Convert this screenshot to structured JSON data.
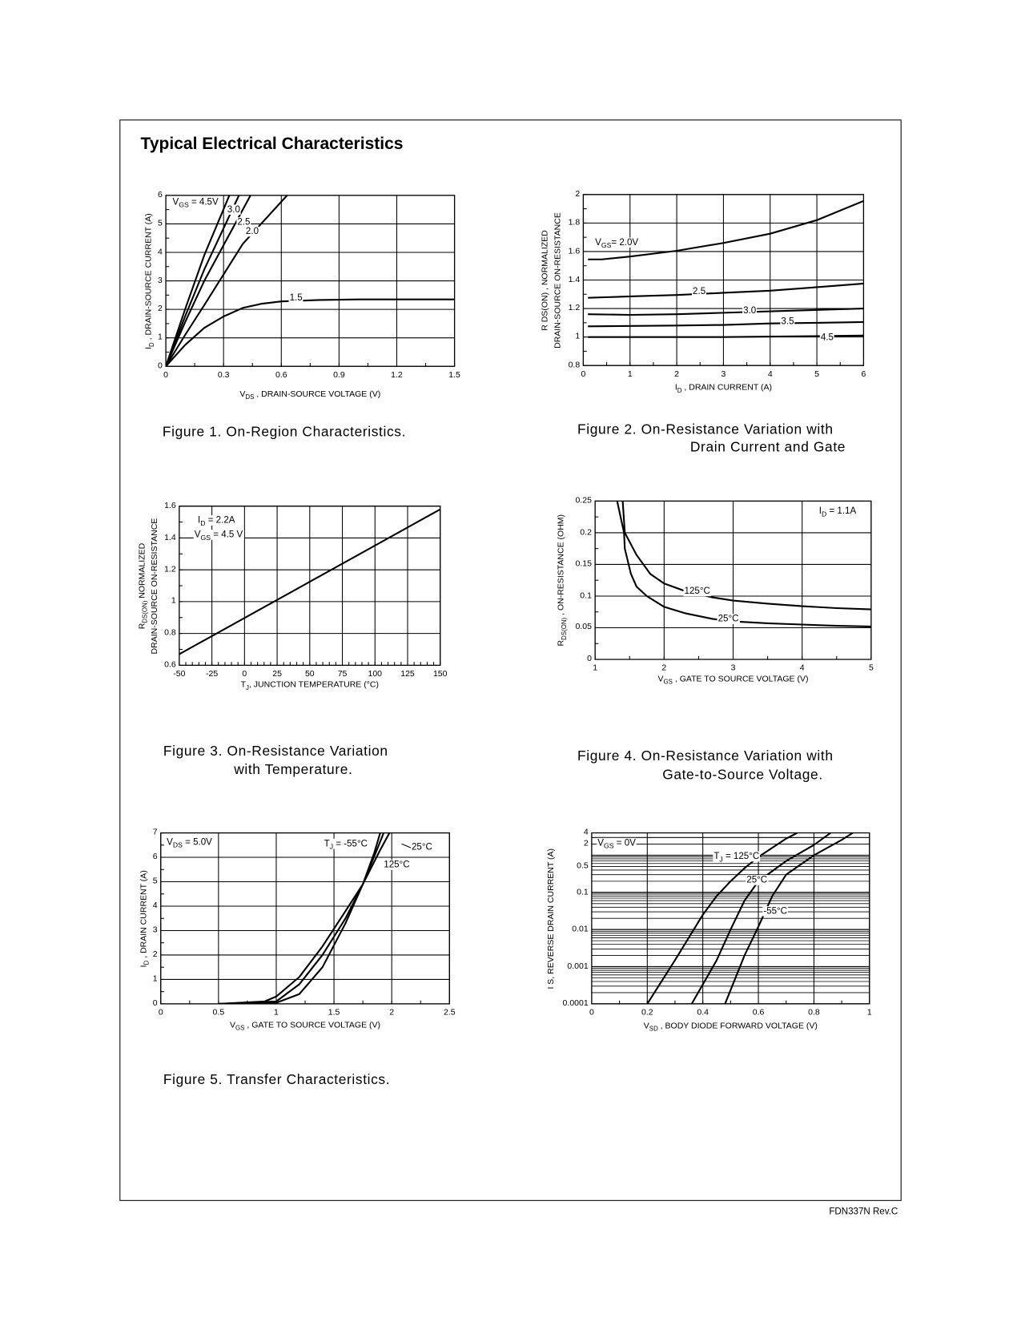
{
  "page": {
    "title": "Typical Electrical Characteristics",
    "footer": "FDN337N Rev.C"
  },
  "captions": [
    [
      "Figure 1. On-Region Characteristics."
    ],
    [
      "Figure 2. On-Resistance Variation with",
      "Drain Current and Gate"
    ],
    [
      "Figure 3. On-Resistance Variation",
      "with Temperature."
    ],
    [
      "Figure 4. On-Resistance Variation with",
      "Gate-to-Source Voltage."
    ],
    [
      "Figure  5. Transfer Characteristics."
    ]
  ],
  "chart_data": [
    {
      "type": "line",
      "title": "Figure 1. On-Region Characteristics.",
      "xlabel": "V_{DS} , DRAIN-SOURCE VOLTAGE (V)",
      "ylabel": [
        "I_{D} , DRAIN-SOURCE CURRENT (A)"
      ],
      "xlim": [
        0,
        1.5
      ],
      "ylim": [
        0,
        6
      ],
      "grid": true,
      "xticks": [
        "0",
        "0.3",
        "0.6",
        "0.9",
        "1.2",
        "1.5"
      ],
      "yticks": [
        "0",
        "1",
        "2",
        "3",
        "4",
        "5",
        "6"
      ],
      "series": [
        {
          "name": "VGS = 4.5V",
          "points": [
            [
              0,
              0
            ],
            [
              0.1,
              2.0
            ],
            [
              0.2,
              3.9
            ],
            [
              0.33,
              6
            ]
          ]
        },
        {
          "name": "3.0",
          "points": [
            [
              0,
              0
            ],
            [
              0.1,
              1.75
            ],
            [
              0.2,
              3.4
            ],
            [
              0.38,
              6
            ]
          ]
        },
        {
          "name": "2.5",
          "points": [
            [
              0,
              0
            ],
            [
              0.1,
              1.55
            ],
            [
              0.2,
              3.0
            ],
            [
              0.44,
              6
            ]
          ]
        },
        {
          "name": "2.0",
          "points": [
            [
              0,
              0
            ],
            [
              0.1,
              1.1
            ],
            [
              0.2,
              2.15
            ],
            [
              0.4,
              4.3
            ],
            [
              0.63,
              6
            ]
          ]
        },
        {
          "name": "1.5",
          "points": [
            [
              0,
              0
            ],
            [
              0.1,
              0.75
            ],
            [
              0.2,
              1.35
            ],
            [
              0.3,
              1.75
            ],
            [
              0.4,
              2.05
            ],
            [
              0.5,
              2.2
            ],
            [
              0.6,
              2.28
            ],
            [
              0.8,
              2.33
            ],
            [
              1.0,
              2.35
            ],
            [
              1.5,
              2.35
            ]
          ]
        }
      ],
      "annotations": [
        "V_{GS} = 4.5V",
        "3.0",
        "2.5",
        "2.0",
        "1.5"
      ]
    },
    {
      "type": "line",
      "title": "Figure 2. On-Resistance Variation with Drain Current and Gate",
      "xlabel": "I_{D} , DRAIN CURRENT (A)",
      "ylabel": [
        "R DS(ON) , NORMALIZED",
        "DRAIN-SOURCE ON-RESISTANCE"
      ],
      "xlim": [
        0,
        6
      ],
      "ylim": [
        0.8,
        2
      ],
      "grid": true,
      "xticks": [
        "0",
        "1",
        "2",
        "3",
        "4",
        "5",
        "6"
      ],
      "yticks": [
        "0.8",
        "1",
        "1.2",
        "1.4",
        "1.6",
        "1.8",
        "2"
      ],
      "series": [
        {
          "name": "VGS = 2.0V",
          "points": [
            [
              0.1,
              1.545
            ],
            [
              0.4,
              1.545
            ],
            [
              1,
              1.565
            ],
            [
              2,
              1.605
            ],
            [
              3,
              1.66
            ],
            [
              4,
              1.725
            ],
            [
              5,
              1.82
            ],
            [
              6,
              1.955
            ]
          ]
        },
        {
          "name": "2.5",
          "points": [
            [
              0.1,
              1.275
            ],
            [
              1,
              1.285
            ],
            [
              2,
              1.295
            ],
            [
              3,
              1.31
            ],
            [
              4,
              1.325
            ],
            [
              5,
              1.35
            ],
            [
              6,
              1.375
            ]
          ]
        },
        {
          "name": "3.0",
          "points": [
            [
              0.1,
              1.16
            ],
            [
              1,
              1.155
            ],
            [
              2,
              1.16
            ],
            [
              3,
              1.17
            ],
            [
              4,
              1.18
            ],
            [
              5,
              1.19
            ],
            [
              6,
              1.2
            ]
          ]
        },
        {
          "name": "3.5",
          "points": [
            [
              0.1,
              1.075
            ],
            [
              2,
              1.08
            ],
            [
              3,
              1.085
            ],
            [
              4,
              1.095
            ],
            [
              5,
              1.1
            ],
            [
              6,
              1.105
            ]
          ]
        },
        {
          "name": "4.5",
          "points": [
            [
              0.1,
              1.0
            ],
            [
              3,
              1.0
            ],
            [
              6,
              1.01
            ]
          ]
        }
      ],
      "annotations": [
        "V_{GS}= 2.0V",
        "2.5",
        "3.0",
        "3.5",
        "4.5"
      ]
    },
    {
      "type": "line",
      "title": "Figure 3. On-Resistance Variation with Temperature.",
      "xlabel": "T_{J}, JUNCTION TEMPERATURE (°C)",
      "ylabel": [
        "R_{DS(ON)}  NORMALIZED",
        "DRAIN-SOURCE ON-RESISTANCE"
      ],
      "xlim": [
        -50,
        150
      ],
      "ylim": [
        0.6,
        1.6
      ],
      "grid": true,
      "xticks": [
        "-50",
        "-25",
        "0",
        "25",
        "50",
        "75",
        "100",
        "125",
        "150"
      ],
      "yticks": [
        "0.6",
        "0.8",
        "1",
        "1.2",
        "1.4",
        "1.6"
      ],
      "series": [
        {
          "name": "ID = 2.2A, VGS = 4.5V",
          "points": [
            [
              -50,
              0.67
            ],
            [
              150,
              1.58
            ]
          ]
        }
      ],
      "annotations": [
        "I_{D} = 2.2A",
        "V_{GS} = 4.5 V"
      ]
    },
    {
      "type": "line",
      "title": "Figure 4. On-Resistance Variation with Gate-to-Source Voltage.",
      "xlabel": "V_{GS} , GATE TO SOURCE VOLTAGE (V)",
      "ylabel": [
        "R_{DS(ON)} , ON-RESISTANCE (OHM)"
      ],
      "xlim": [
        1,
        5
      ],
      "ylim": [
        0,
        0.25
      ],
      "grid": true,
      "xticks": [
        "1",
        "2",
        "3",
        "4",
        "5"
      ],
      "yticks": [
        "0",
        "0.05",
        "0.1",
        "0.15",
        "0.2",
        "0.25"
      ],
      "series": [
        {
          "name": "125°C",
          "points": [
            [
              1.4,
              0.25
            ],
            [
              1.43,
              0.2
            ],
            [
              1.6,
              0.165
            ],
            [
              1.8,
              0.135
            ],
            [
              2,
              0.12
            ],
            [
              2.3,
              0.108
            ],
            [
              2.7,
              0.098
            ],
            [
              3,
              0.093
            ],
            [
              3.5,
              0.088
            ],
            [
              4,
              0.084
            ],
            [
              4.5,
              0.081
            ],
            [
              5,
              0.079
            ]
          ]
        },
        {
          "name": "25°C",
          "points": [
            [
              1.32,
              0.25
            ],
            [
              1.42,
              0.2
            ],
            [
              1.43,
              0.175
            ],
            [
              1.52,
              0.135
            ],
            [
              1.6,
              0.115
            ],
            [
              1.75,
              0.1
            ],
            [
              2,
              0.083
            ],
            [
              2.3,
              0.073
            ],
            [
              2.7,
              0.064
            ],
            [
              3,
              0.06
            ],
            [
              3.5,
              0.057
            ],
            [
              4,
              0.055
            ],
            [
              4.5,
              0.053
            ],
            [
              5,
              0.052
            ]
          ]
        }
      ],
      "annotations": [
        "I_{D} = 1.1A",
        "125°C",
        "25°C"
      ]
    },
    {
      "type": "line",
      "title": "Figure  5. Transfer Characteristics.",
      "xlabel": "V_{GS} , GATE TO SOURCE VOLTAGE (V)",
      "ylabel": [
        "I_{D} , DRAIN CURRENT (A)"
      ],
      "xlim": [
        0,
        2.5
      ],
      "ylim": [
        0,
        7
      ],
      "grid": true,
      "xticks": [
        "0",
        "0.5",
        "1",
        "1.5",
        "2",
        "2.5"
      ],
      "yticks": [
        "0",
        "1",
        "2",
        "3",
        "4",
        "5",
        "6",
        "7"
      ],
      "series": [
        {
          "name": "TJ = -55°C",
          "points": [
            [
              0.5,
              0
            ],
            [
              1,
              0.04
            ],
            [
              1.2,
              0.4
            ],
            [
              1.4,
              1.5
            ],
            [
              1.6,
              3.3
            ],
            [
              1.75,
              4.9
            ],
            [
              1.85,
              6.2
            ],
            [
              1.9,
              7
            ]
          ]
        },
        {
          "name": "25°C",
          "points": [
            [
              0.5,
              0
            ],
            [
              1,
              0.1
            ],
            [
              1.2,
              0.8
            ],
            [
              1.4,
              2.0
            ],
            [
              1.6,
              3.5
            ],
            [
              1.75,
              4.9
            ],
            [
              1.88,
              6.4
            ],
            [
              1.93,
              7
            ]
          ]
        },
        {
          "name": "125°C",
          "points": [
            [
              0.5,
              0
            ],
            [
              0.9,
              0.1
            ],
            [
              1,
              0.3
            ],
            [
              1.2,
              1.1
            ],
            [
              1.4,
              2.35
            ],
            [
              1.6,
              3.8
            ],
            [
              1.75,
              4.9
            ],
            [
              1.9,
              6.3
            ],
            [
              1.98,
              7
            ]
          ]
        }
      ],
      "annotations": [
        "V_{DS} = 5.0V",
        "T_{J} = -55°C",
        "25°C",
        "125°C"
      ]
    },
    {
      "type": "line",
      "title": "",
      "xlabel": "V_{SD} , BODY DIODE FORWARD VOLTAGE (V)",
      "ylabel": [
        "I S, REVERSE DRAIN CURRENT (A)"
      ],
      "xlim": [
        0,
        1
      ],
      "ylim": [
        0.0001,
        4
      ],
      "yscale": "log",
      "grid": true,
      "xticks": [
        "0",
        "0.2",
        "0.4",
        "0.6",
        "0.8",
        "1"
      ],
      "yticks": [
        "0.0001",
        "0.001",
        "0.01",
        "0.1",
        "0.5",
        "2",
        "4"
      ],
      "series": [
        {
          "name": "TJ = 125°C",
          "points": [
            [
              0.2,
              0.0001
            ],
            [
              0.3,
              0.0015
            ],
            [
              0.4,
              0.025
            ],
            [
              0.45,
              0.08
            ],
            [
              0.5,
              0.2
            ],
            [
              0.55,
              0.45
            ],
            [
              0.6,
              0.9
            ],
            [
              0.7,
              2.8
            ],
            [
              0.74,
              4
            ]
          ]
        },
        {
          "name": "25°C",
          "points": [
            [
              0.36,
              0.0001
            ],
            [
              0.45,
              0.0015
            ],
            [
              0.5,
              0.01
            ],
            [
              0.55,
              0.06
            ],
            [
              0.6,
              0.2
            ],
            [
              0.7,
              0.7
            ],
            [
              0.8,
              1.9
            ],
            [
              0.86,
              4
            ]
          ]
        },
        {
          "name": "-55°C",
          "points": [
            [
              0.48,
              0.0001
            ],
            [
              0.55,
              0.002
            ],
            [
              0.6,
              0.012
            ],
            [
              0.65,
              0.08
            ],
            [
              0.7,
              0.3
            ],
            [
              0.8,
              1.0
            ],
            [
              0.9,
              2.6
            ],
            [
              0.94,
              4
            ]
          ]
        }
      ],
      "annotations": [
        "V_{GS} = 0V",
        "T_{J} = 125°C",
        "25°C",
        "-55°C"
      ]
    }
  ]
}
